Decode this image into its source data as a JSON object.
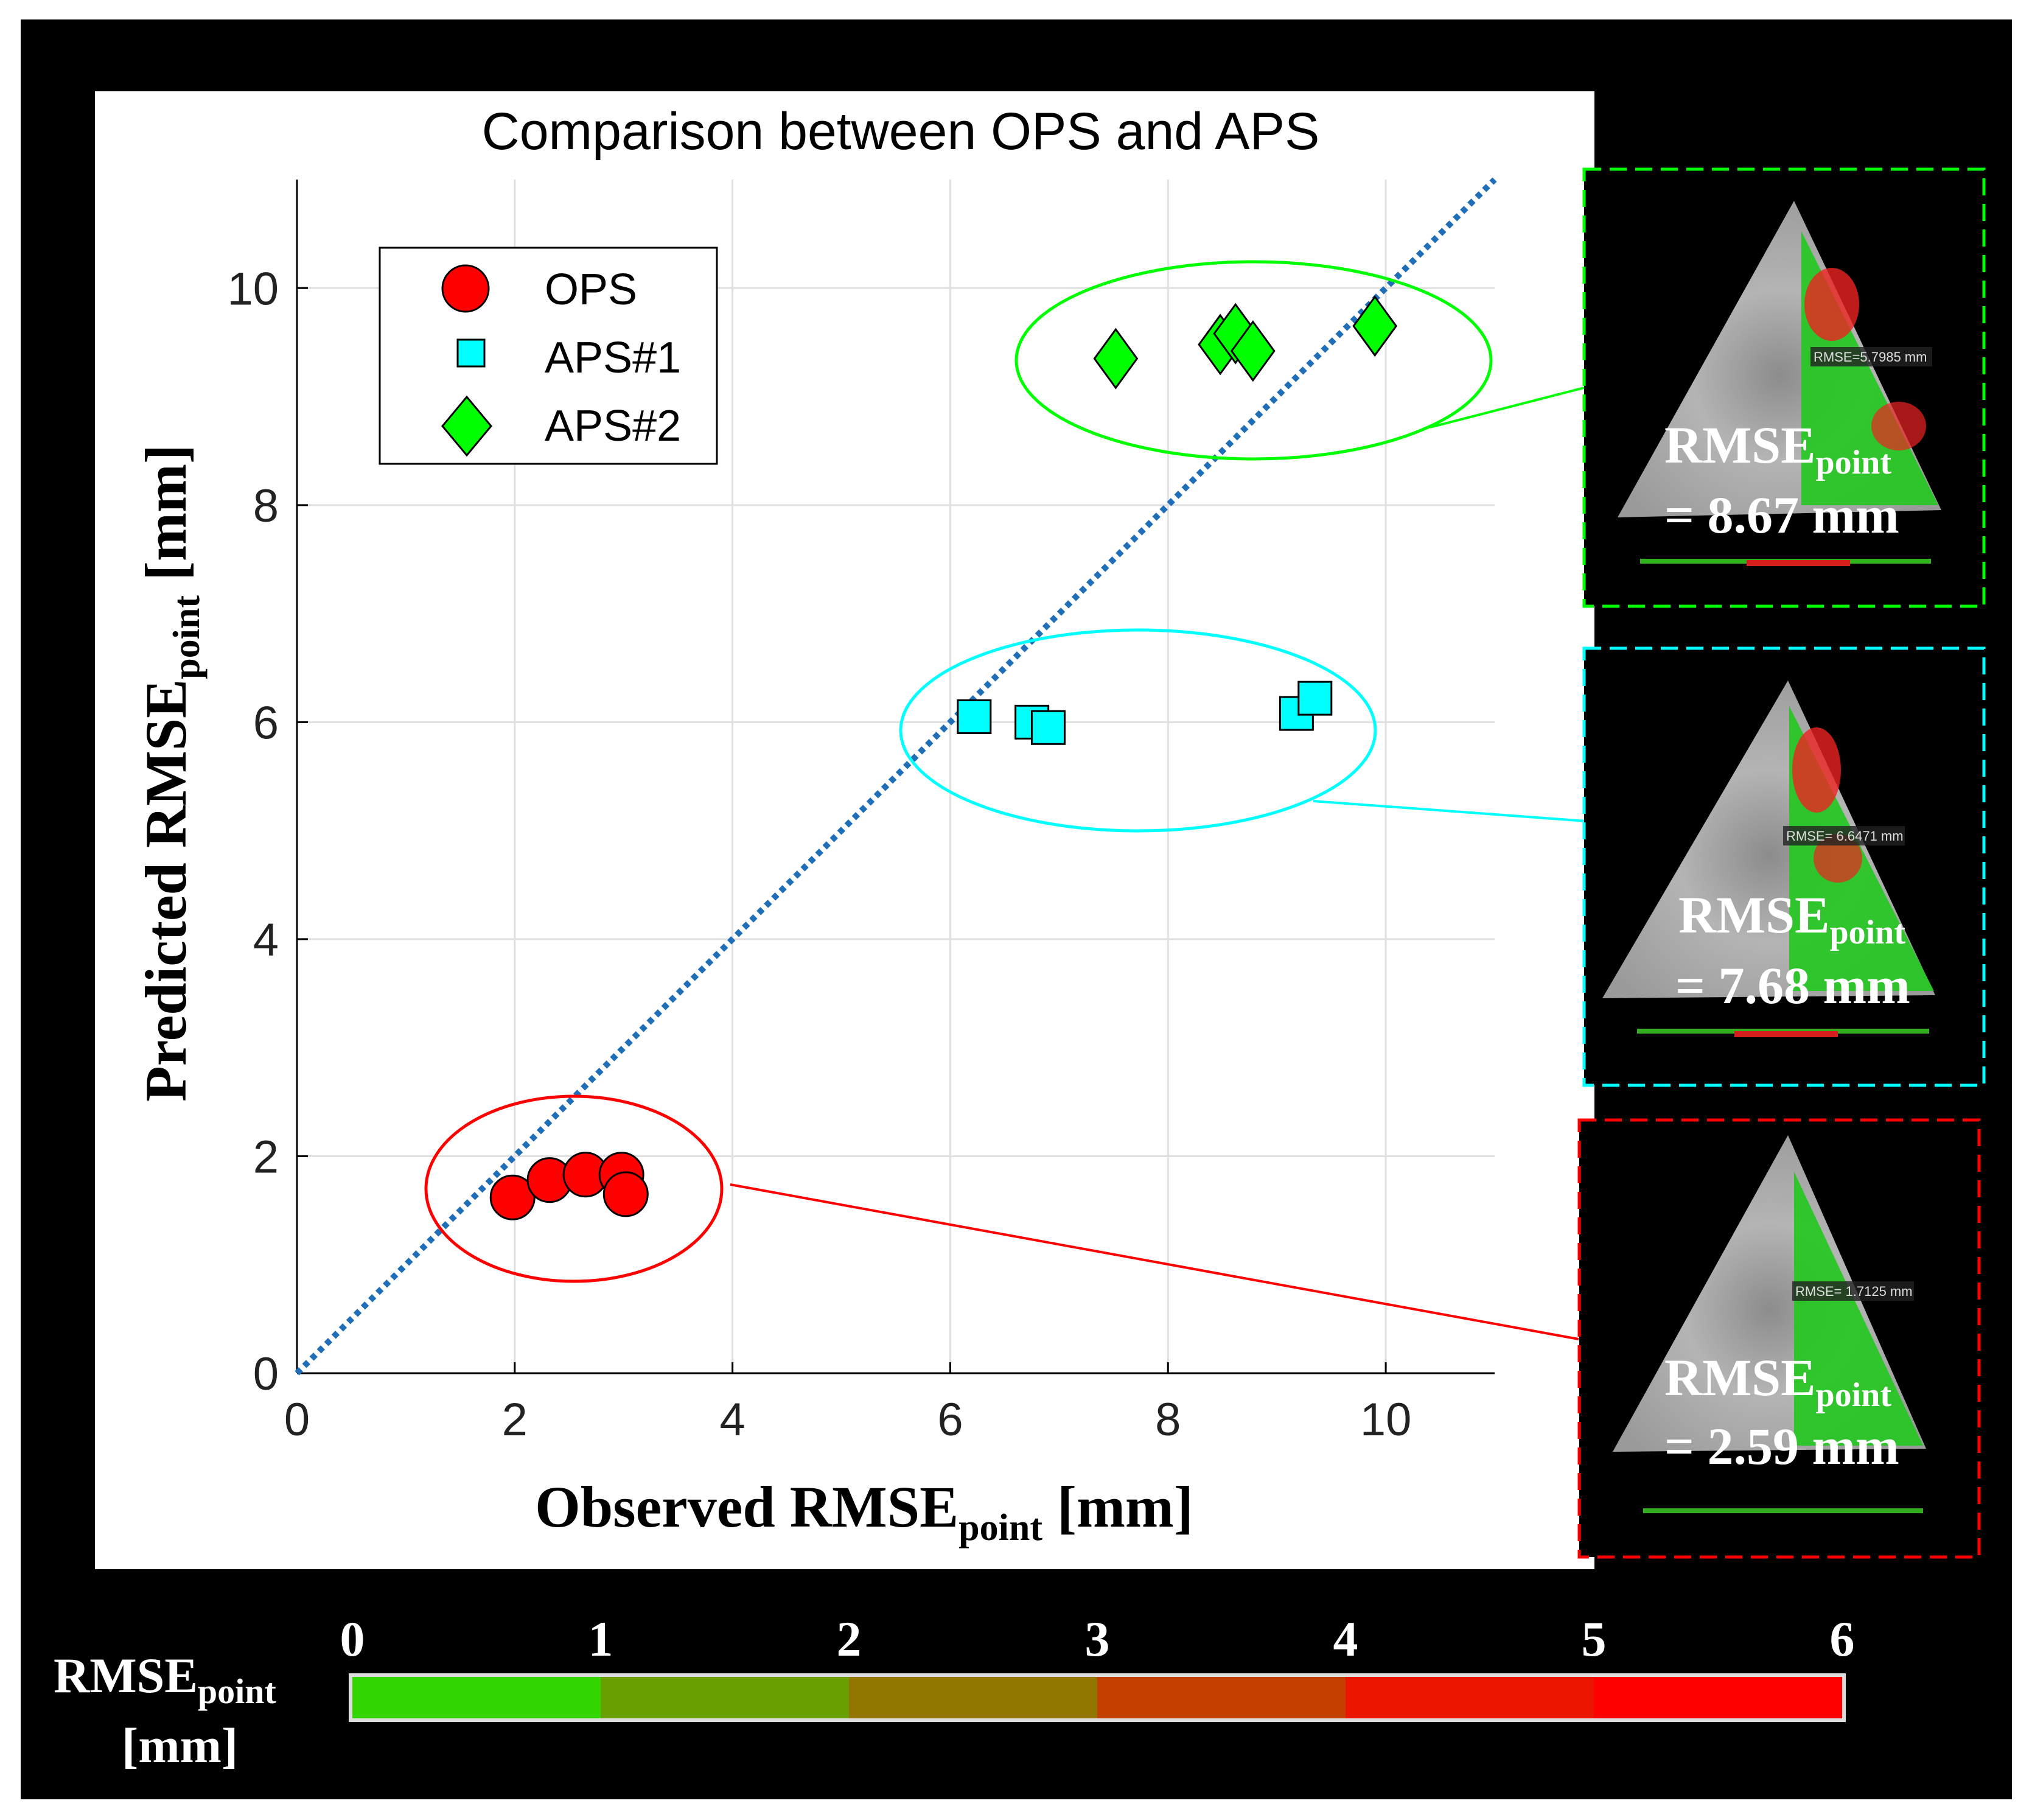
{
  "chart_data": {
    "type": "scatter",
    "title": "Comparison between OPS and APS",
    "xlabel_main": "Observed RMSE",
    "xlabel_sub": "point",
    "xlabel_unit": " [mm]",
    "ylabel_main": "Predicted RMSE",
    "ylabel_sub": "point",
    "ylabel_unit": " [mm]",
    "xlim": [
      0,
      11
    ],
    "ylim": [
      0,
      11
    ],
    "xticks": [
      0,
      2,
      4,
      6,
      8,
      10
    ],
    "yticks": [
      0,
      2,
      4,
      6,
      8,
      10
    ],
    "grid": true,
    "legend_position": "top-left",
    "reference_line": "y = x",
    "series": [
      {
        "name": "OPS",
        "marker": "circle",
        "color": "#ff0000",
        "x": [
          1.98,
          2.32,
          2.65,
          2.98,
          3.02
        ],
        "y": [
          1.62,
          1.78,
          1.83,
          1.83,
          1.65
        ]
      },
      {
        "name": "APS#1",
        "marker": "square",
        "color": "#00ffff",
        "x": [
          6.22,
          6.75,
          6.9,
          9.18,
          9.35
        ],
        "y": [
          6.05,
          6.0,
          5.95,
          6.08,
          6.22
        ]
      },
      {
        "name": "APS#2",
        "marker": "diamond",
        "color": "#00ff00",
        "x": [
          7.52,
          8.48,
          8.62,
          8.78,
          9.9
        ],
        "y": [
          9.35,
          9.48,
          9.58,
          9.42,
          9.65
        ]
      }
    ]
  },
  "panels": [
    {
      "rmse_label": "RMSE",
      "rmse_sub": "point",
      "value": "= 8.67 mm",
      "overlay_text": "RMSE=5.7985 mm",
      "color": "#00ff00"
    },
    {
      "rmse_label": "RMSE",
      "rmse_sub": "point",
      "value": "= 7.68 mm",
      "overlay_text": "RMSE= 6.6471 mm",
      "color": "#00ffff"
    },
    {
      "rmse_label": "RMSE",
      "rmse_sub": "point",
      "value": "= 2.59 mm",
      "overlay_text": "RMSE= 1.7125 mm",
      "color": "#ff0000"
    }
  ],
  "colorbar": {
    "label_main": "RMSE",
    "label_sub": "point",
    "label_unit": "[mm]",
    "ticks": [
      "0",
      "1",
      "2",
      "3",
      "4",
      "5",
      "6"
    ],
    "colors": [
      "#33d600",
      "#6a9f00",
      "#927600",
      "#c44000",
      "#ec1600",
      "#ff0000"
    ]
  }
}
